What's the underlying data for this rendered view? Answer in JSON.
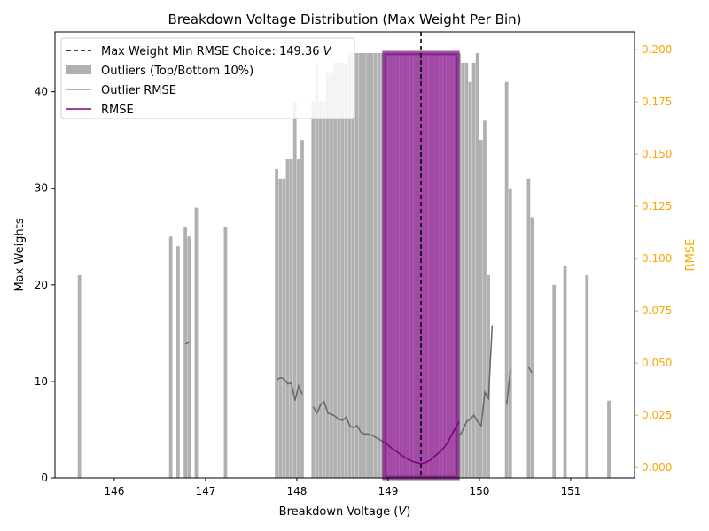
{
  "chart_data": {
    "type": "bar",
    "title": "Breakdown Voltage Distribution (Max Weight Per Bin)",
    "xlabel": "Breakdown Voltage (V)",
    "xlabel_parts": {
      "text": "Breakdown Voltage (",
      "unit": "V",
      "close": ")"
    },
    "ylabel": "Max Weights",
    "y2label": "RMSE",
    "xlim": [
      145.35,
      151.7
    ],
    "ylim": [
      0,
      46.2
    ],
    "y2lim": [
      -0.005,
      0.2085
    ],
    "xticks": [
      146,
      147,
      148,
      149,
      150,
      151
    ],
    "yticks": [
      0,
      10,
      20,
      30,
      40
    ],
    "y2ticks": [
      0.0,
      0.025,
      0.05,
      0.075,
      0.1,
      0.125,
      0.15,
      0.175,
      0.2
    ],
    "y2tick_labels": [
      "0.000",
      "0.025",
      "0.050",
      "0.075",
      "0.100",
      "0.125",
      "0.150",
      "0.175",
      "0.200"
    ],
    "bin_width": 0.04,
    "choice_x": 149.36,
    "legend": {
      "placement": "top-left",
      "choice_label": "Max Weight Min RMSE Choice: 149.36",
      "choice_unit": "V",
      "outlier_bars_label": "Outliers (Top/Bottom 10%)",
      "outlier_rmse_label": "Outlier RMSE",
      "rmse_label": "RMSE"
    },
    "outlier_bars": [
      {
        "x": 145.62,
        "value": 21
      },
      {
        "x": 146.62,
        "value": 25
      },
      {
        "x": 146.7,
        "value": 24
      },
      {
        "x": 146.78,
        "value": 26
      },
      {
        "x": 146.82,
        "value": 25
      },
      {
        "x": 146.9,
        "value": 28
      },
      {
        "x": 147.22,
        "value": 26
      },
      {
        "x": 147.78,
        "value": 32
      },
      {
        "x": 147.82,
        "value": 31
      },
      {
        "x": 147.86,
        "value": 31
      },
      {
        "x": 147.9,
        "value": 33
      },
      {
        "x": 147.94,
        "value": 33
      },
      {
        "x": 147.98,
        "value": 39
      },
      {
        "x": 148.02,
        "value": 33
      },
      {
        "x": 148.06,
        "value": 35
      },
      {
        "x": 148.18,
        "value": 39
      },
      {
        "x": 148.22,
        "value": 43
      },
      {
        "x": 148.26,
        "value": 39
      },
      {
        "x": 148.3,
        "value": 39
      },
      {
        "x": 148.34,
        "value": 42
      },
      {
        "x": 148.38,
        "value": 42
      },
      {
        "x": 148.42,
        "value": 43
      },
      {
        "x": 148.46,
        "value": 43
      },
      {
        "x": 148.5,
        "value": 43
      },
      {
        "x": 148.54,
        "value": 43
      },
      {
        "x": 148.58,
        "value": 44
      },
      {
        "x": 148.62,
        "value": 44
      },
      {
        "x": 148.66,
        "value": 44
      },
      {
        "x": 148.7,
        "value": 44
      },
      {
        "x": 148.74,
        "value": 44
      },
      {
        "x": 148.78,
        "value": 44
      },
      {
        "x": 148.82,
        "value": 44
      },
      {
        "x": 148.86,
        "value": 44
      },
      {
        "x": 148.9,
        "value": 44
      },
      {
        "x": 148.94,
        "value": 44
      },
      {
        "x": 149.78,
        "value": 44
      },
      {
        "x": 149.82,
        "value": 43
      },
      {
        "x": 149.86,
        "value": 43
      },
      {
        "x": 149.9,
        "value": 41
      },
      {
        "x": 149.94,
        "value": 43
      },
      {
        "x": 149.98,
        "value": 44
      },
      {
        "x": 150.02,
        "value": 35
      },
      {
        "x": 150.06,
        "value": 37
      },
      {
        "x": 150.1,
        "value": 21
      },
      {
        "x": 150.3,
        "value": 41
      },
      {
        "x": 150.34,
        "value": 30
      },
      {
        "x": 150.54,
        "value": 31
      },
      {
        "x": 150.58,
        "value": 27
      },
      {
        "x": 150.82,
        "value": 20
      },
      {
        "x": 150.94,
        "value": 22
      },
      {
        "x": 151.18,
        "value": 21
      },
      {
        "x": 151.42,
        "value": 8
      }
    ],
    "main_bars": [
      {
        "x": 148.98,
        "value": 44
      },
      {
        "x": 149.02,
        "value": 44
      },
      {
        "x": 149.06,
        "value": 44
      },
      {
        "x": 149.1,
        "value": 44
      },
      {
        "x": 149.14,
        "value": 44
      },
      {
        "x": 149.18,
        "value": 44
      },
      {
        "x": 149.22,
        "value": 44
      },
      {
        "x": 149.26,
        "value": 44
      },
      {
        "x": 149.3,
        "value": 44
      },
      {
        "x": 149.34,
        "value": 44
      },
      {
        "x": 149.38,
        "value": 44
      },
      {
        "x": 149.42,
        "value": 44
      },
      {
        "x": 149.46,
        "value": 44
      },
      {
        "x": 149.5,
        "value": 44
      },
      {
        "x": 149.54,
        "value": 44
      },
      {
        "x": 149.58,
        "value": 44
      },
      {
        "x": 149.62,
        "value": 44
      },
      {
        "x": 149.66,
        "value": 44
      },
      {
        "x": 149.7,
        "value": 44
      },
      {
        "x": 149.74,
        "value": 44
      }
    ],
    "outlier_rmse_segments": [
      [
        [
          146.78,
          0.059
        ],
        [
          146.82,
          0.06
        ]
      ],
      [
        [
          147.78,
          0.042
        ],
        [
          147.82,
          0.043
        ],
        [
          147.86,
          0.0425
        ],
        [
          147.9,
          0.04
        ],
        [
          147.94,
          0.0405
        ],
        [
          147.98,
          0.032
        ],
        [
          148.02,
          0.039
        ],
        [
          148.06,
          0.035
        ]
      ],
      [
        [
          148.18,
          0.029
        ],
        [
          148.22,
          0.026
        ],
        [
          148.26,
          0.03
        ],
        [
          148.3,
          0.0315
        ],
        [
          148.34,
          0.026
        ],
        [
          148.38,
          0.0255
        ],
        [
          148.42,
          0.0245
        ],
        [
          148.46,
          0.023
        ],
        [
          148.5,
          0.0225
        ],
        [
          148.54,
          0.024
        ],
        [
          148.58,
          0.02
        ],
        [
          148.62,
          0.019
        ],
        [
          148.66,
          0.02
        ],
        [
          148.7,
          0.017
        ],
        [
          148.74,
          0.016
        ],
        [
          148.78,
          0.016
        ],
        [
          148.82,
          0.0155
        ],
        [
          148.86,
          0.0145
        ],
        [
          148.9,
          0.0135
        ],
        [
          148.94,
          0.0125
        ]
      ],
      [
        [
          149.78,
          0.015
        ],
        [
          149.82,
          0.018
        ],
        [
          149.86,
          0.022
        ],
        [
          149.9,
          0.023
        ],
        [
          149.94,
          0.025
        ],
        [
          149.98,
          0.022
        ],
        [
          150.02,
          0.02
        ],
        [
          150.06,
          0.036
        ],
        [
          150.1,
          0.033
        ],
        [
          150.14,
          0.068
        ]
      ],
      [
        [
          150.3,
          0.03
        ],
        [
          150.34,
          0.047
        ]
      ],
      [
        [
          150.54,
          0.048
        ],
        [
          150.58,
          0.045
        ]
      ]
    ],
    "rmse_line": [
      [
        148.94,
        0.0125
      ],
      [
        148.98,
        0.0115
      ],
      [
        149.02,
        0.01
      ],
      [
        149.06,
        0.0085
      ],
      [
        149.1,
        0.0075
      ],
      [
        149.14,
        0.006
      ],
      [
        149.18,
        0.005
      ],
      [
        149.22,
        0.004
      ],
      [
        149.26,
        0.003
      ],
      [
        149.3,
        0.0025
      ],
      [
        149.34,
        0.002
      ],
      [
        149.38,
        0.002
      ],
      [
        149.42,
        0.0025
      ],
      [
        149.46,
        0.0035
      ],
      [
        149.5,
        0.005
      ],
      [
        149.54,
        0.0065
      ],
      [
        149.58,
        0.008
      ],
      [
        149.62,
        0.01
      ],
      [
        149.66,
        0.0125
      ],
      [
        149.7,
        0.016
      ],
      [
        149.74,
        0.019
      ],
      [
        149.78,
        0.022
      ]
    ],
    "colors": {
      "outlier_bar": "#b0b0b0",
      "main_bar": "#9b3b9e",
      "main_bar_edge": "#7a1e7f",
      "outlier_rmse": "#666666",
      "rmse": "#800080",
      "choice_line": "#000000",
      "y2_axis": "#ffa500"
    }
  }
}
